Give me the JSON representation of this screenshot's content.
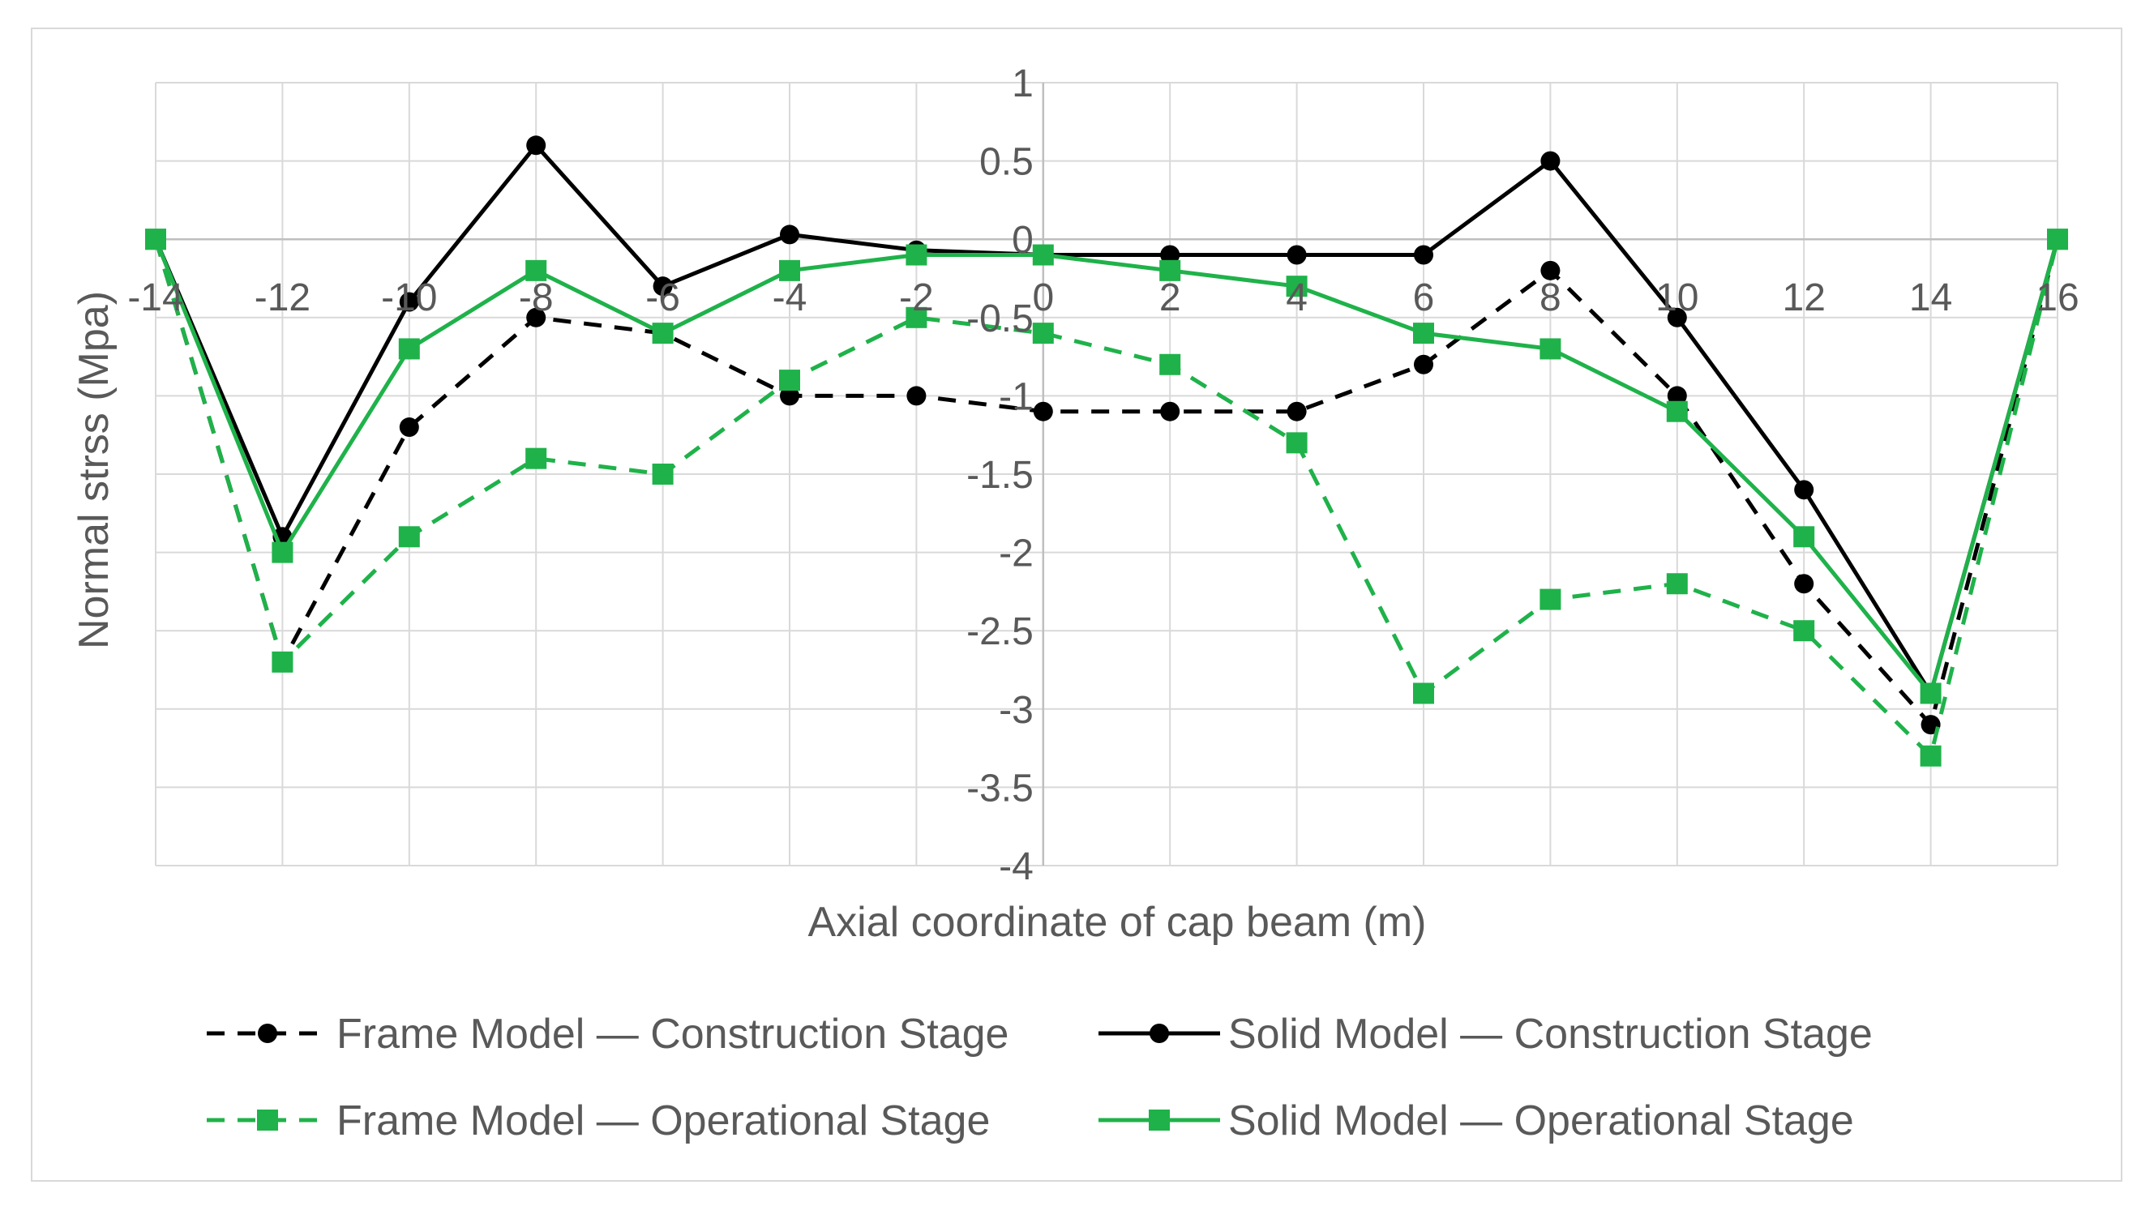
{
  "chart_data": {
    "type": "line",
    "title": "",
    "xlabel": "Axial coordinate of cap beam (m)",
    "ylabel": "Normal strss (Mpa)",
    "xlim": [
      -14,
      16
    ],
    "ylim": [
      -4,
      1
    ],
    "x_ticks": [
      "-14",
      "-12",
      "-10",
      "-8",
      "-6",
      "-4",
      "-2",
      "0",
      "2",
      "4",
      "6",
      "8",
      "10",
      "12",
      "14",
      "16"
    ],
    "y_ticks": [
      "1",
      "0.5",
      "0",
      "-0.5",
      "-1",
      "-1.5",
      "-2",
      "-2.5",
      "-3",
      "-3.5",
      "-4"
    ],
    "grid": true,
    "legend_position": "bottom",
    "x": [
      -14,
      -12,
      -10,
      -8,
      -6,
      -4,
      -2,
      0,
      2,
      4,
      6,
      8,
      10,
      12,
      14,
      16
    ],
    "series": [
      {
        "name": "Frame Model — Construction Stage",
        "color": "#000000",
        "dashed": true,
        "marker": "circle",
        "values": [
          0,
          -2.7,
          -1.2,
          -0.5,
          -0.6,
          -1.0,
          -1.0,
          -1.1,
          -1.1,
          -1.1,
          -0.8,
          -0.2,
          -1.0,
          -2.2,
          -3.1,
          0
        ]
      },
      {
        "name": "Solid Model — Construction Stage",
        "color": "#000000",
        "dashed": false,
        "marker": "circle",
        "values": [
          0,
          -1.9,
          -0.4,
          0.6,
          -0.3,
          0.03,
          -0.07,
          -0.1,
          -0.1,
          -0.1,
          -0.1,
          0.5,
          -0.5,
          -1.6,
          -2.9,
          0
        ]
      },
      {
        "name": "Frame Model — Operational Stage",
        "color": "#1fb24a",
        "dashed": true,
        "marker": "square",
        "values": [
          0,
          -2.7,
          -1.9,
          -1.4,
          -1.5,
          -0.9,
          -0.5,
          -0.6,
          -0.8,
          -1.3,
          -2.9,
          -2.3,
          -2.2,
          -2.5,
          -3.3,
          0
        ]
      },
      {
        "name": "Solid Model — Operational Stage",
        "color": "#1fb24a",
        "dashed": false,
        "marker": "square",
        "values": [
          0,
          -2.0,
          -0.7,
          -0.2,
          -0.6,
          -0.2,
          -0.1,
          -0.1,
          -0.2,
          -0.3,
          -0.6,
          -0.7,
          -1.1,
          -1.9,
          -2.9,
          0
        ]
      }
    ]
  }
}
